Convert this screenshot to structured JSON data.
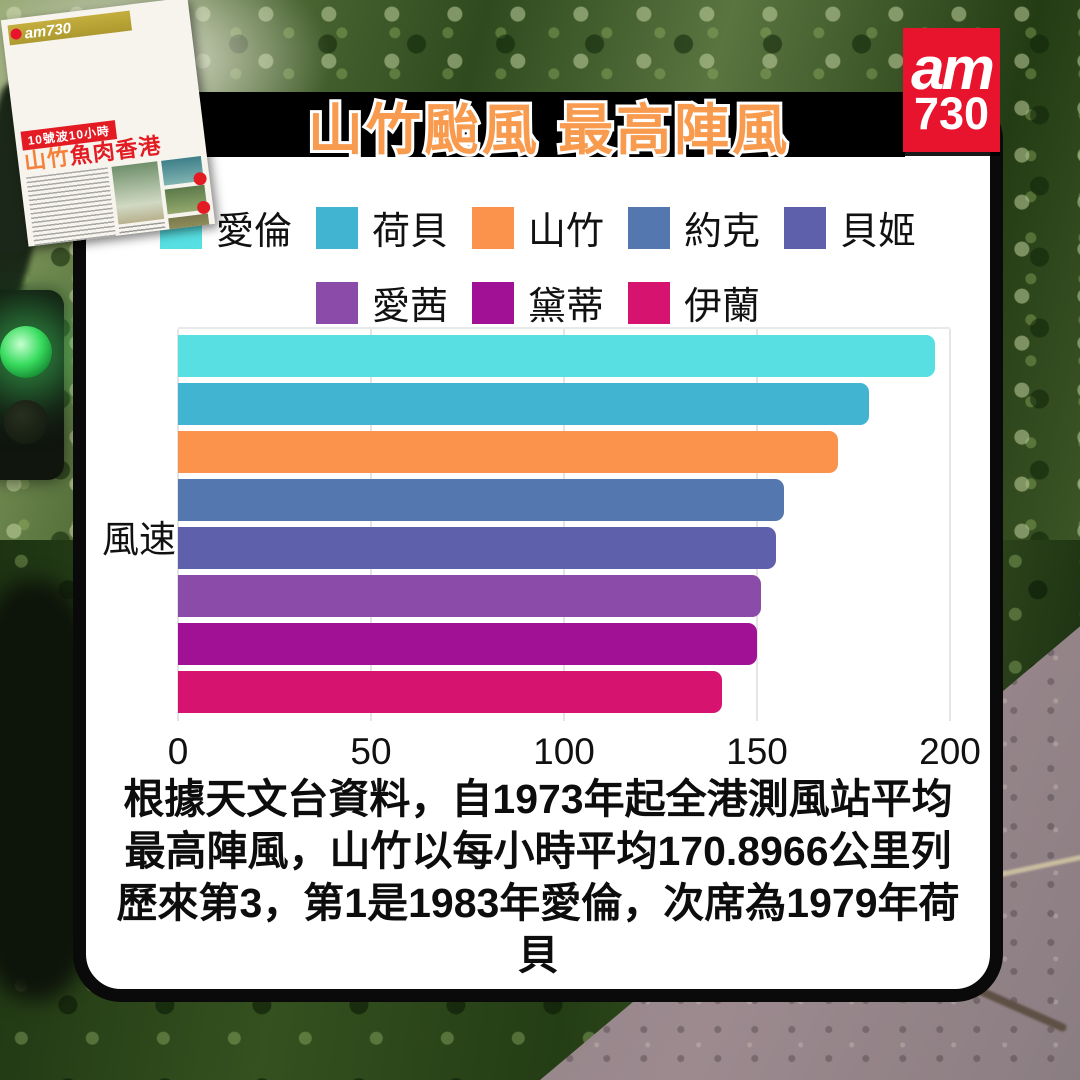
{
  "header": {
    "title": "山竹颱風 最高陣風"
  },
  "logo": {
    "line1": "am",
    "line2": "730"
  },
  "newspaper": {
    "masthead": "am730",
    "strip": "10號波10小時",
    "headline_part1": "山竹",
    "headline_part2": "魚肉香港"
  },
  "theme": {
    "title_color": "#f89b4e",
    "logo_bg": "#e8132d",
    "band_bg": "#000000",
    "card_bg": "#ffffff"
  },
  "chart_data": {
    "type": "bar",
    "orientation": "horizontal",
    "title": "山竹颱風 最高陣風",
    "categories": [
      "愛倫",
      "荷貝",
      "山竹",
      "約克",
      "貝姬",
      "愛茜",
      "黛蒂",
      "伊蘭"
    ],
    "values": [
      196,
      179,
      171,
      157,
      155,
      151,
      150,
      141
    ],
    "colors": [
      "#57dfe2",
      "#41b4d2",
      "#fb934c",
      "#5577af",
      "#5f60ac",
      "#8a4ca8",
      "#a01195",
      "#d6136e"
    ],
    "ylabel": "風速",
    "xlabel": "",
    "xlim": [
      0,
      200
    ],
    "x_ticks": [
      0,
      50,
      100,
      150,
      200
    ],
    "grid": true,
    "legend_position": "top",
    "legend_rows": [
      5,
      3
    ]
  },
  "caption_lines": [
    "根據天文台資料，自1973年起全港測風站平均",
    "最高陣風，山竹以每小時平均170.8966公里列",
    "歷來第3，第1是1983年愛倫，次席為1979年荷",
    "貝"
  ]
}
